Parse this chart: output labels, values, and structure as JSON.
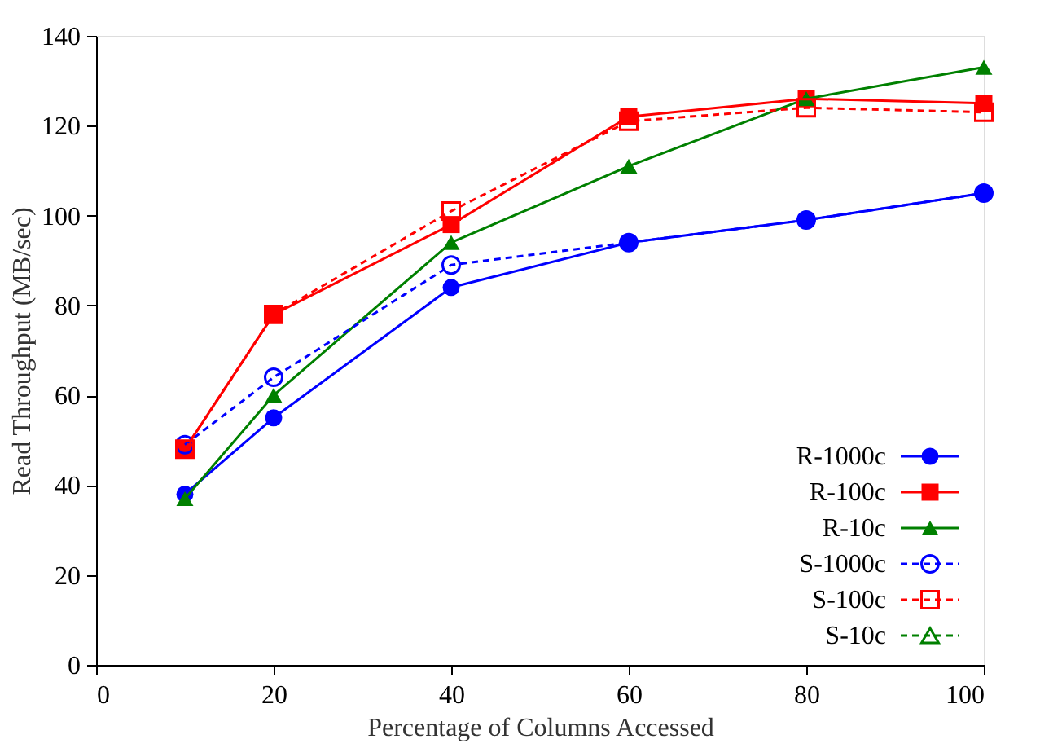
{
  "chart_data": {
    "type": "line",
    "xlabel": "Percentage of Columns Accessed",
    "ylabel": "Read Throughput (MB/sec)",
    "x": [
      10,
      20,
      40,
      60,
      80,
      100
    ],
    "xlim": [
      0,
      100
    ],
    "xticks": [
      0,
      20,
      40,
      60,
      80,
      100
    ],
    "ylim": [
      0,
      140
    ],
    "yticks": [
      0,
      20,
      40,
      60,
      80,
      100,
      120,
      140
    ],
    "legend": "bottom right",
    "grid": false,
    "series": [
      {
        "name": "R-1000c",
        "color": "#0000ff",
        "marker": "circle",
        "line_style": "solid",
        "values": [
          38,
          55,
          84,
          94,
          99,
          105
        ]
      },
      {
        "name": "R-100c",
        "color": "#ff0000",
        "marker": "square",
        "line_style": "solid",
        "values": [
          48,
          78,
          98,
          122,
          126,
          125
        ]
      },
      {
        "name": "R-10c",
        "color": "#008000",
        "marker": "triangle",
        "line_style": "solid",
        "values": [
          37,
          60,
          94,
          111,
          126,
          133
        ]
      },
      {
        "name": "S-1000c",
        "color": "#0000ff",
        "marker": "circle",
        "line_style": "dashed",
        "values": [
          49,
          64,
          89,
          94,
          99,
          105
        ]
      },
      {
        "name": "S-100c",
        "color": "#ff0000",
        "marker": "square",
        "line_style": "dashed",
        "values": [
          48,
          78,
          101,
          121,
          124,
          123
        ]
      },
      {
        "name": "S-10c",
        "color": "#008000",
        "marker": "triangle",
        "line_style": "dashed",
        "values": [
          null,
          null,
          null,
          null,
          null,
          null
        ]
      }
    ]
  }
}
